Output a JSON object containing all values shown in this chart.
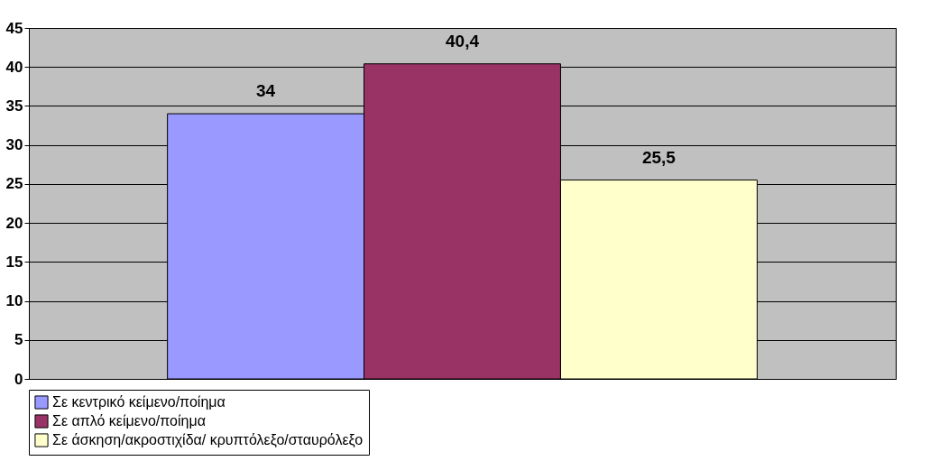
{
  "chart_data": {
    "type": "bar",
    "categories": [
      null
    ],
    "series": [
      {
        "name": "Σε κεντρικό κείμενο/ποίημα",
        "color": "#9999ff",
        "values": [
          34
        ],
        "value_labels": [
          "34"
        ]
      },
      {
        "name": "Σε απλό κείμενο/ποίημα",
        "color": "#993366",
        "values": [
          40.4
        ],
        "value_labels": [
          "40,4"
        ]
      },
      {
        "name": "Σε άσκηση/ακροστιχίδα/ κρυπτόλεξο/σταυρόλεξο",
        "color": "#ffffcc",
        "values": [
          25.5
        ],
        "value_labels": [
          "25,5"
        ]
      }
    ],
    "ylim": [
      0,
      45
    ],
    "yticks": [
      0,
      5,
      10,
      15,
      20,
      25,
      30,
      35,
      40,
      45
    ],
    "grid": "y",
    "legend": "bottom"
  }
}
